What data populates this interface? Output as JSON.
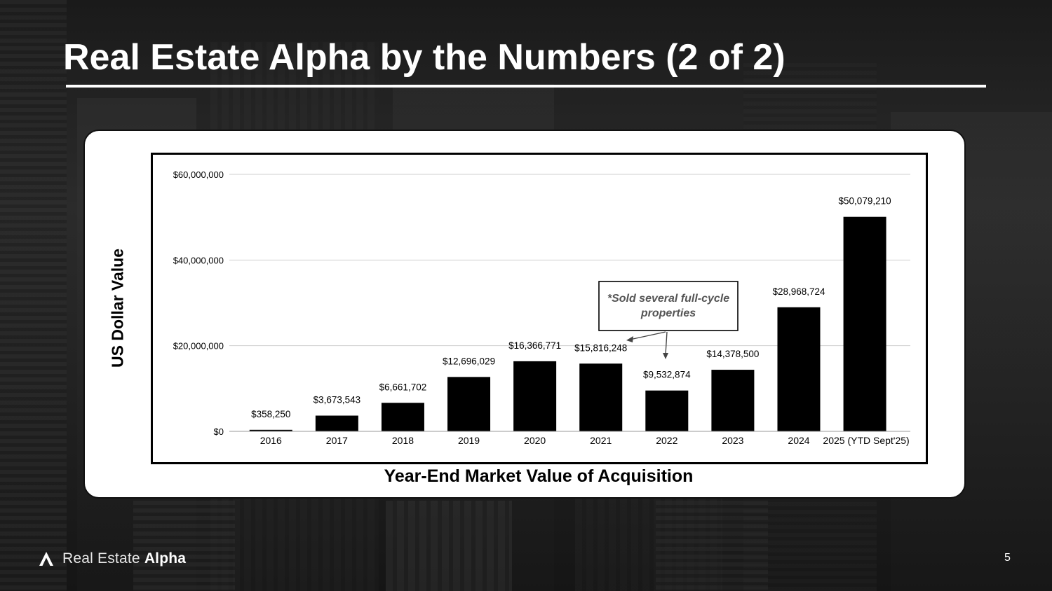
{
  "slide": {
    "title": "Real Estate Alpha by the Numbers (2 of 2)",
    "page_number": "5",
    "brand": {
      "light": "Real Estate",
      "bold": "Alpha"
    }
  },
  "chart_data": {
    "type": "bar",
    "title": "",
    "xlabel": "Year-End Market Value of Acquisition",
    "ylabel": "US Dollar Value",
    "ylim": [
      0,
      60000000
    ],
    "yticks": [
      {
        "value": 0,
        "label": "$0"
      },
      {
        "value": 20000000,
        "label": "$20,000,000"
      },
      {
        "value": 40000000,
        "label": "$40,000,000"
      },
      {
        "value": 60000000,
        "label": "$60,000,000"
      }
    ],
    "categories": [
      "2016",
      "2017",
      "2018",
      "2019",
      "2020",
      "2021",
      "2022",
      "2023",
      "2024",
      "2025 (YTD Sept'25)"
    ],
    "values": [
      358250,
      3673543,
      6661702,
      12696029,
      16366771,
      15816248,
      9532874,
      14378500,
      28968724,
      50079210
    ],
    "value_labels": [
      "$358,250",
      "$3,673,543",
      "$6,661,702",
      "$12,696,029",
      "$16,366,771",
      "$15,816,248",
      "$9,532,874",
      "$14,378,500",
      "$28,968,724",
      "$50,079,210"
    ],
    "grid": true,
    "bar_color": "#000000",
    "annotation": {
      "text_line1": "*Sold several full-cycle",
      "text_line2": "properties",
      "points_to": [
        "2021",
        "2022"
      ]
    }
  }
}
